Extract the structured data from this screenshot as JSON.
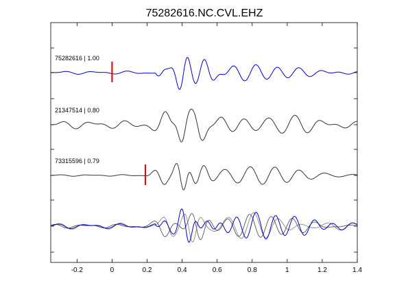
{
  "chart_data": {
    "type": "line",
    "title": "75282616.NC.CVL.EHZ",
    "xlabel": "",
    "ylabel": "",
    "xlim": [
      -0.35,
      1.4
    ],
    "x_ticks": [
      -0.2,
      0,
      0.2,
      0.4,
      0.6,
      0.8,
      1,
      1.2,
      1.4
    ],
    "x_tick_labels": [
      "-0.2",
      "0",
      "0.2",
      "0.4",
      "0.6",
      "0.8",
      "1",
      "1.2",
      "1.4"
    ],
    "grid": false,
    "legend": "none",
    "colors": {
      "reference": "#0000cc",
      "match": "#333333",
      "overlay_gray": "#888888",
      "pick": "#dd0000",
      "axes": "#000000"
    },
    "traces": [
      {
        "label": "75282616 | 1.00",
        "color": "#0000cc",
        "pick_time": 0.0,
        "signal": {
          "onset": 0.25,
          "noise": 0.04,
          "waves": [
            {
              "t": 0.26,
              "a": 0.14,
              "f": 12,
              "w": 0.06
            },
            {
              "t": 0.4,
              "a": 0.6,
              "f": 10,
              "w": 0.06
            },
            {
              "t": 0.53,
              "a": 0.55,
              "f": 9,
              "w": 0.08
            },
            {
              "t": 0.8,
              "a": 0.3,
              "f": 8,
              "w": 0.3
            }
          ]
        }
      },
      {
        "label": "21347514 | 0.80",
        "color": "#333333",
        "pick_time": null,
        "signal": {
          "onset": 0.15,
          "noise": 0.1,
          "waves": [
            {
              "t": 0.3,
              "a": 0.45,
              "f": 7,
              "w": 0.07
            },
            {
              "t": 0.4,
              "a": 0.55,
              "f": 10,
              "w": 0.05
            },
            {
              "t": 0.5,
              "a": 0.65,
              "f": 8,
              "w": 0.06
            },
            {
              "t": 0.85,
              "a": 0.35,
              "f": 7,
              "w": 0.3
            }
          ]
        }
      },
      {
        "label": "73315596 | 0.79",
        "color": "#333333",
        "pick_time": 0.19,
        "signal": {
          "onset": 0.2,
          "noise": 0.02,
          "waves": [
            {
              "t": 0.29,
              "a": 0.35,
              "f": 8,
              "w": 0.06
            },
            {
              "t": 0.4,
              "a": 0.6,
              "f": 11,
              "w": 0.05
            },
            {
              "t": 0.5,
              "a": 0.45,
              "f": 8,
              "w": 0.06
            },
            {
              "t": 0.85,
              "a": 0.35,
              "f": 7,
              "w": 0.3
            }
          ]
        }
      },
      {
        "label": "",
        "color": "#0000cc",
        "pick_time": null,
        "overlay": true,
        "signal": {
          "onset": 0.25,
          "noise": 0.06,
          "waves": [
            {
              "t": 0.3,
              "a": 0.25,
              "f": 10,
              "w": 0.05
            },
            {
              "t": 0.42,
              "a": 0.7,
              "f": 11,
              "w": 0.06
            },
            {
              "t": 0.55,
              "a": 0.5,
              "f": 9,
              "w": 0.08
            },
            {
              "t": 0.85,
              "a": 0.45,
              "f": 9,
              "w": 0.35
            }
          ]
        },
        "underlays": [
          {
            "color": "#888888",
            "signal": {
              "onset": 0.18,
              "noise": 0.08,
              "waves": [
                {
                  "t": 0.32,
                  "a": 0.45,
                  "f": 8,
                  "w": 0.06
                },
                {
                  "t": 0.45,
                  "a": 0.6,
                  "f": 10,
                  "w": 0.06
                },
                {
                  "t": 0.8,
                  "a": 0.4,
                  "f": 7,
                  "w": 0.32
                }
              ]
            }
          },
          {
            "color": "#555555",
            "signal": {
              "onset": 0.2,
              "noise": 0.05,
              "waves": [
                {
                  "t": 0.3,
                  "a": 0.35,
                  "f": 7,
                  "w": 0.06
                },
                {
                  "t": 0.48,
                  "a": 0.55,
                  "f": 9,
                  "w": 0.07
                },
                {
                  "t": 0.85,
                  "a": 0.4,
                  "f": 8,
                  "w": 0.3
                }
              ]
            }
          }
        ]
      }
    ]
  }
}
